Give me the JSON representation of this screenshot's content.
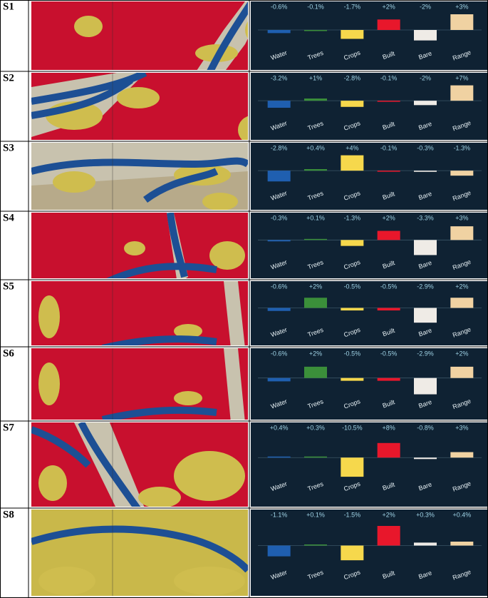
{
  "chart_data": [
    {
      "type": "bar",
      "title": "S1",
      "categories": [
        "Water",
        "Trees",
        "Crops",
        "Built",
        "Bare",
        "Range"
      ],
      "colors": [
        "#1f5fb0",
        "#3b8f3a",
        "#f6d84c",
        "#e8172b",
        "#efebe6",
        "#f0d2a2"
      ],
      "values": [
        -0.6,
        -0.1,
        -1.7,
        2,
        -2,
        3
      ],
      "value_labels": [
        "-0.6%",
        "-0.1%",
        "-1.7%",
        "+2%",
        "-2%",
        "+3%"
      ]
    },
    {
      "type": "bar",
      "title": "S2",
      "categories": [
        "Water",
        "Trees",
        "Crops",
        "Built",
        "Bare",
        "Range"
      ],
      "colors": [
        "#1f5fb0",
        "#3b8f3a",
        "#f6d84c",
        "#e8172b",
        "#efebe6",
        "#f0d2a2"
      ],
      "values": [
        -3.2,
        1,
        -2.8,
        -0.1,
        -2,
        7
      ],
      "value_labels": [
        "-3.2%",
        "+1%",
        "-2.8%",
        "-0.1%",
        "-2%",
        "+7%"
      ]
    },
    {
      "type": "bar",
      "title": "S3",
      "categories": [
        "Water",
        "Trees",
        "Crops",
        "Built",
        "Bare",
        "Range"
      ],
      "colors": [
        "#1f5fb0",
        "#3b8f3a",
        "#f6d84c",
        "#e8172b",
        "#efebe6",
        "#f0d2a2"
      ],
      "values": [
        -2.8,
        0.4,
        4,
        -0.1,
        -0.3,
        -1.3
      ],
      "value_labels": [
        "-2.8%",
        "+0.4%",
        "+4%",
        "-0.1%",
        "-0.3%",
        "-1.3%"
      ]
    },
    {
      "type": "bar",
      "title": "S4",
      "categories": [
        "Water",
        "Trees",
        "Crops",
        "Built",
        "Bare",
        "Range"
      ],
      "colors": [
        "#1f5fb0",
        "#3b8f3a",
        "#f6d84c",
        "#e8172b",
        "#efebe6",
        "#f0d2a2"
      ],
      "values": [
        -0.3,
        0.1,
        -1.3,
        2,
        -3.3,
        3
      ],
      "value_labels": [
        "-0.3%",
        "+0.1%",
        "-1.3%",
        "+2%",
        "-3.3%",
        "+3%"
      ]
    },
    {
      "type": "bar",
      "title": "S5",
      "categories": [
        "Water",
        "Trees",
        "Crops",
        "Built",
        "Bare",
        "Range"
      ],
      "colors": [
        "#1f5fb0",
        "#3b8f3a",
        "#f6d84c",
        "#e8172b",
        "#efebe6",
        "#f0d2a2"
      ],
      "values": [
        -0.6,
        2,
        -0.5,
        -0.5,
        -2.9,
        2
      ],
      "value_labels": [
        "-0.6%",
        "+2%",
        "-0.5%",
        "-0.5%",
        "-2.9%",
        "+2%"
      ]
    },
    {
      "type": "bar",
      "title": "S6",
      "categories": [
        "Water",
        "Trees",
        "Crops",
        "Built",
        "Bare",
        "Range"
      ],
      "colors": [
        "#1f5fb0",
        "#3b8f3a",
        "#f6d84c",
        "#e8172b",
        "#efebe6",
        "#f0d2a2"
      ],
      "values": [
        -0.6,
        2,
        -0.5,
        -0.5,
        -2.9,
        2
      ],
      "value_labels": [
        "-0.6%",
        "+2%",
        "-0.5%",
        "-0.5%",
        "-2.9%",
        "+2%"
      ]
    },
    {
      "type": "bar",
      "title": "S7",
      "categories": [
        "Water",
        "Trees",
        "Crops",
        "Built",
        "Bare",
        "Range"
      ],
      "colors": [
        "#1f5fb0",
        "#3b8f3a",
        "#f6d84c",
        "#e8172b",
        "#efebe6",
        "#f0d2a2"
      ],
      "values": [
        0.4,
        0.3,
        -10.5,
        8,
        -0.8,
        3
      ],
      "value_labels": [
        "+0.4%",
        "+0.3%",
        "-10.5%",
        "+8%",
        "-0.8%",
        "+3%"
      ]
    },
    {
      "type": "bar",
      "title": "S8",
      "categories": [
        "Water",
        "Trees",
        "Crops",
        "Built",
        "Bare",
        "Range"
      ],
      "colors": [
        "#1f5fb0",
        "#3b8f3a",
        "#f6d84c",
        "#e8172b",
        "#efebe6",
        "#f0d2a2"
      ],
      "values": [
        -1.1,
        0.1,
        -1.5,
        2,
        0.3,
        0.4
      ],
      "value_labels": [
        "-1.1%",
        "+0.1%",
        "-1.5%",
        "+2%",
        "+0.3%",
        "+0.4%"
      ]
    }
  ]
}
